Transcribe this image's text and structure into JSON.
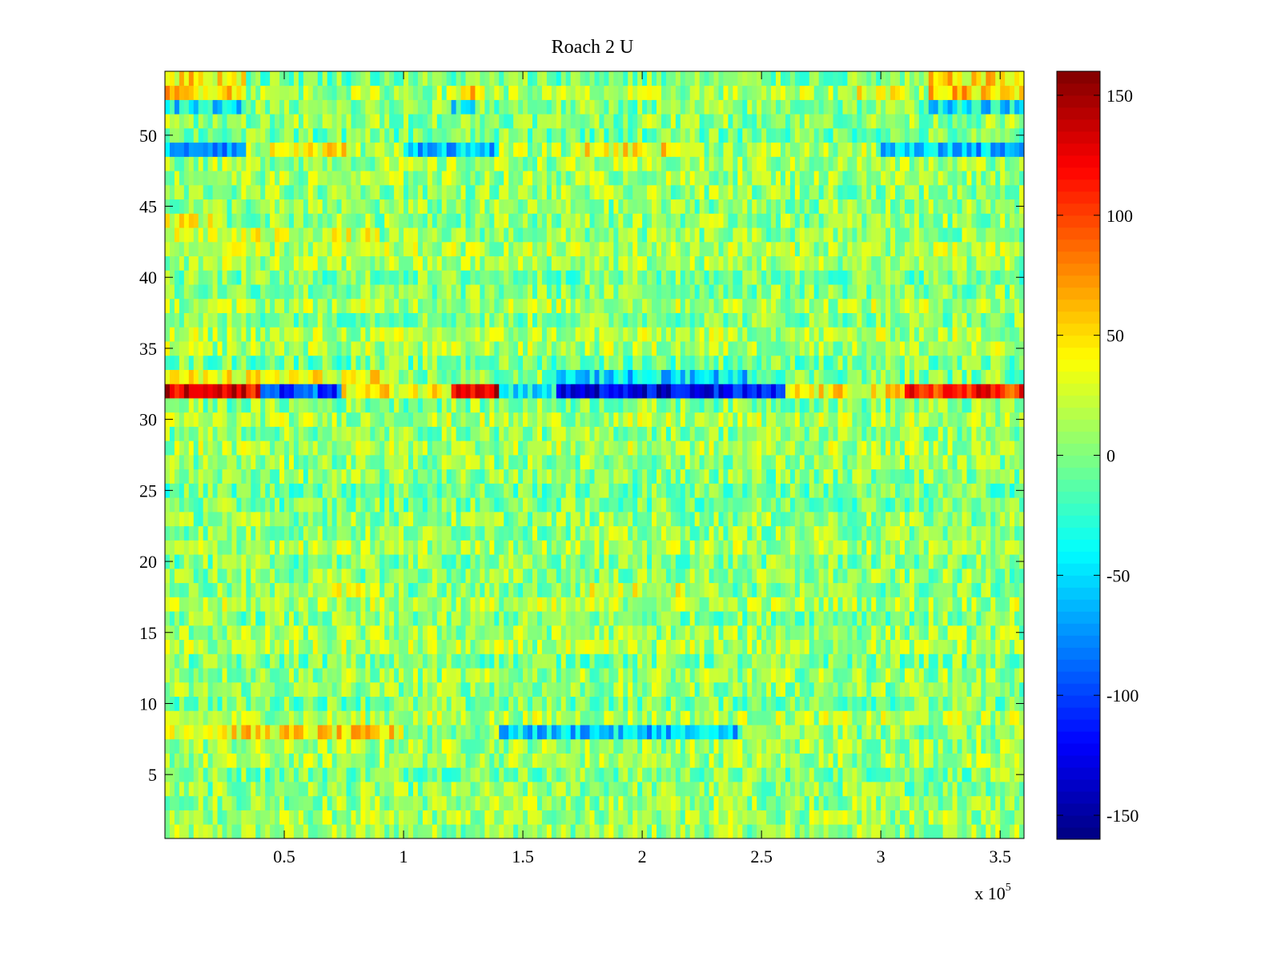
{
  "chart_data": {
    "type": "heatmap",
    "title": "Roach 2 U",
    "xlabel": "",
    "ylabel": "",
    "x_exponent_label": "x 10",
    "x_exponent": "5",
    "xlim": [
      0,
      3.6
    ],
    "ylim": [
      0.5,
      54.5
    ],
    "x_ticks": [
      {
        "value": 0.5,
        "label": "0.5"
      },
      {
        "value": 1,
        "label": "1"
      },
      {
        "value": 1.5,
        "label": "1.5"
      },
      {
        "value": 2,
        "label": "2"
      },
      {
        "value": 2.5,
        "label": "2.5"
      },
      {
        "value": 3,
        "label": "3"
      },
      {
        "value": 3.5,
        "label": "3.5"
      }
    ],
    "y_ticks": [
      {
        "value": 5,
        "label": "5"
      },
      {
        "value": 10,
        "label": "10"
      },
      {
        "value": 15,
        "label": "15"
      },
      {
        "value": 20,
        "label": "20"
      },
      {
        "value": 25,
        "label": "25"
      },
      {
        "value": 30,
        "label": "30"
      },
      {
        "value": 35,
        "label": "35"
      },
      {
        "value": 40,
        "label": "40"
      },
      {
        "value": 45,
        "label": "45"
      },
      {
        "value": 50,
        "label": "50"
      }
    ],
    "rows": 54,
    "columns": 180,
    "colormap": "jet",
    "colorbar": {
      "clim": [
        -160,
        160
      ],
      "ticks": [
        {
          "value": 150,
          "label": "150"
        },
        {
          "value": 100,
          "label": "100"
        },
        {
          "value": 50,
          "label": "50"
        },
        {
          "value": 0,
          "label": "0"
        },
        {
          "value": -50,
          "label": "-50"
        },
        {
          "value": -100,
          "label": "-100"
        },
        {
          "value": -150,
          "label": "-150"
        }
      ]
    },
    "row_profiles": {
      "baseline_mean": 5,
      "noise_amplitude": 32,
      "notable_rows": [
        {
          "row": 32,
          "description": "strong band",
          "segments": [
            {
              "x": [
                0,
                0.4
              ],
              "value": 125
            },
            {
              "x": [
                0.4,
                0.75
              ],
              "value": -95
            },
            {
              "x": [
                0.75,
                1.2
              ],
              "value": 40
            },
            {
              "x": [
                1.2,
                1.4
              ],
              "value": 140
            },
            {
              "x": [
                1.4,
                1.65
              ],
              "value": -40
            },
            {
              "x": [
                1.65,
                2.3
              ],
              "value": -130
            },
            {
              "x": [
                2.3,
                2.6
              ],
              "value": -120
            },
            {
              "x": [
                2.6,
                3.1
              ],
              "value": 40
            },
            {
              "x": [
                3.1,
                3.6
              ],
              "value": 110
            }
          ]
        },
        {
          "row": 33,
          "segments": [
            {
              "x": [
                0,
                0.9
              ],
              "value": 35
            },
            {
              "x": [
                1.6,
                2.45
              ],
              "value": -50
            }
          ]
        },
        {
          "row": 8,
          "segments": [
            {
              "x": [
                0,
                1.0
              ],
              "value": 45
            },
            {
              "x": [
                1.4,
                2.4
              ],
              "value": -55
            }
          ]
        },
        {
          "row": 49,
          "segments": [
            {
              "x": [
                0,
                0.35
              ],
              "value": -65
            },
            {
              "x": [
                0.45,
                0.8
              ],
              "value": 40
            },
            {
              "x": [
                1.0,
                1.4
              ],
              "value": -55
            },
            {
              "x": [
                1.75,
                2.2
              ],
              "value": 40
            },
            {
              "x": [
                3.0,
                3.6
              ],
              "value": -60
            }
          ]
        },
        {
          "row": 52,
          "segments": [
            {
              "x": [
                0,
                0.35
              ],
              "value": -45
            },
            {
              "x": [
                1.2,
                1.3
              ],
              "value": -40
            },
            {
              "x": [
                3.2,
                3.6
              ],
              "value": -45
            }
          ]
        },
        {
          "row": 53,
          "segments": [
            {
              "x": [
                0,
                0.35
              ],
              "value": 55
            },
            {
              "x": [
                1.25,
                1.35
              ],
              "value": 60
            },
            {
              "x": [
                2.9,
                3.1
              ],
              "value": 40
            },
            {
              "x": [
                3.2,
                3.6
              ],
              "value": 55
            }
          ]
        },
        {
          "row": 54,
          "segments": [
            {
              "x": [
                0,
                0.35
              ],
              "value": 45
            },
            {
              "x": [
                3.2,
                3.6
              ],
              "value": 45
            }
          ]
        },
        {
          "row": 43,
          "segments": [
            {
              "x": [
                0,
                0.9
              ],
              "value": 25
            }
          ]
        },
        {
          "row": 44,
          "segments": [
            {
              "x": [
                0,
                0.2
              ],
              "value": 30
            }
          ]
        },
        {
          "row": 18,
          "segments": [
            {
              "x": [
                0.5,
                0.9
              ],
              "value": 25
            },
            {
              "x": [
                1.75,
                2.3
              ],
              "value": 25
            }
          ]
        }
      ]
    }
  }
}
